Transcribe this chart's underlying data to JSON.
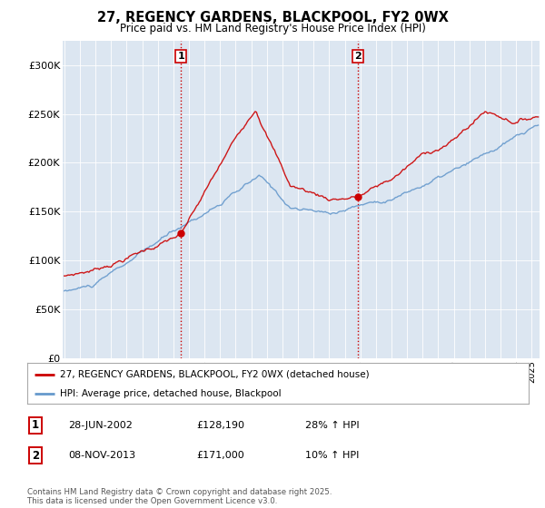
{
  "title_line1": "27, REGENCY GARDENS, BLACKPOOL, FY2 0WX",
  "title_line2": "Price paid vs. HM Land Registry's House Price Index (HPI)",
  "legend_label1": "27, REGENCY GARDENS, BLACKPOOL, FY2 0WX (detached house)",
  "legend_label2": "HPI: Average price, detached house, Blackpool",
  "sale1_date": "28-JUN-2002",
  "sale1_price": "£128,190",
  "sale1_hpi": "28% ↑ HPI",
  "sale2_date": "08-NOV-2013",
  "sale2_price": "£171,000",
  "sale2_hpi": "10% ↑ HPI",
  "footer": "Contains HM Land Registry data © Crown copyright and database right 2025.\nThis data is licensed under the Open Government Licence v3.0.",
  "property_color": "#cc0000",
  "hpi_color": "#6699cc",
  "vline_color": "#cc0000",
  "plot_bg_color": "#dce6f1",
  "ylim": [
    0,
    325000
  ],
  "yticks": [
    0,
    50000,
    100000,
    150000,
    200000,
    250000,
    300000
  ],
  "ytick_labels": [
    "£0",
    "£50K",
    "£100K",
    "£150K",
    "£200K",
    "£250K",
    "£300K"
  ]
}
